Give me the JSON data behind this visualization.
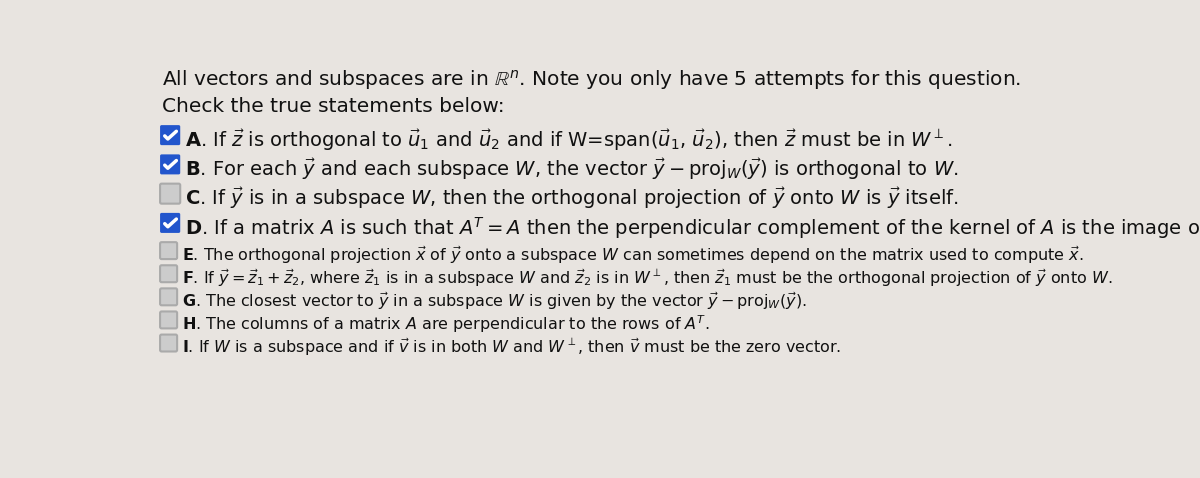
{
  "bg_color": "#e8e4e0",
  "title_line1": "All vectors and subspaces are in $\\mathbb{R}^n$. Note you only have 5 attempts for this question.",
  "title_line2": "Check the true statements below:",
  "items": [
    {
      "label": "A",
      "checked": true,
      "text": "If $\\vec{z}$ is orthogonal to $\\vec{u}_1$ and $\\vec{u}_2$ and if W=span($\\vec{u}_1$, $\\vec{u}_2$), then $\\vec{z}$ must be in $W^{\\perp}$.",
      "small": false
    },
    {
      "label": "B",
      "checked": true,
      "text": "For each $\\vec{y}$ and each subspace $W$, the vector $\\vec{y} - \\mathrm{proj}_W(\\vec{y})$ is orthogonal to $W$.",
      "small": false
    },
    {
      "label": "C",
      "checked": false,
      "text": "If $\\vec{y}$ is in a subspace $W$, then the orthogonal projection of $\\vec{y}$ onto $W$ is $\\vec{y}$ itself.",
      "small": false
    },
    {
      "label": "D",
      "checked": true,
      "text": "If a matrix $A$ is such that $A^T = A$ then the perpendicular complement of the kernel of $A$ is the image of $A$.",
      "small": false
    },
    {
      "label": "E",
      "checked": false,
      "text": "The orthogonal projection $\\vec{x}$ of $\\vec{y}$ onto a subspace $W$ can sometimes depend on the matrix used to compute $\\vec{x}$.",
      "small": true
    },
    {
      "label": "F",
      "checked": false,
      "text": "If $\\vec{y} = \\vec{z}_1 + \\vec{z}_2$, where $\\vec{z}_1$ is in a subspace $W$ and $\\vec{z}_2$ is in $W^{\\perp}$, then $\\vec{z}_1$ must be the orthogonal projection of $\\vec{y}$ onto $W$.",
      "small": true
    },
    {
      "label": "G",
      "checked": false,
      "text": "The closest vector to $\\vec{y}$ in a subspace $W$ is given by the vector $\\vec{y} - \\mathrm{proj}_W(\\vec{y})$.",
      "small": true
    },
    {
      "label": "H",
      "checked": false,
      "text": "The columns of a matrix $A$ are perpendicular to the rows of $A^T$.",
      "small": true
    },
    {
      "label": "I",
      "checked": false,
      "text": "If $W$ is a subspace and if $\\vec{v}$ is in both $W$ and $W^{\\perp}$, then $\\vec{v}$ must be the zero vector.",
      "small": true
    }
  ],
  "font_size_title": 14.5,
  "font_size_large": 14.0,
  "font_size_small": 11.5,
  "check_color": "#2255cc",
  "text_color": "#111111",
  "box_color": "#cccccc",
  "box_edge_color": "#aaaaaa"
}
